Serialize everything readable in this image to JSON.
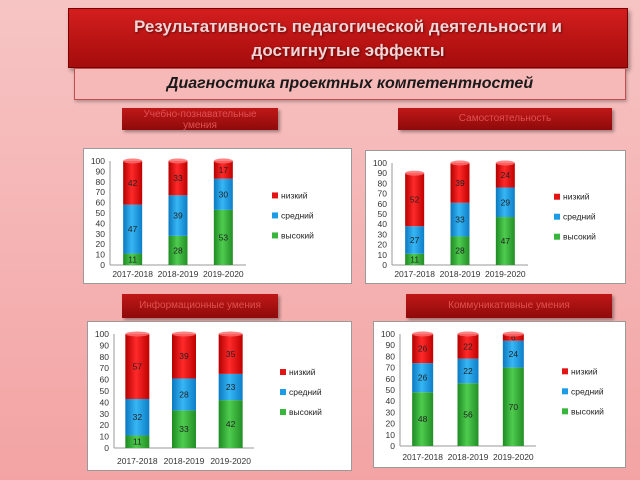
{
  "header": {
    "title_line1": "Результативность педагогической  деятельности и",
    "title_line2": "достигнутые эффекты",
    "subtitle": "Диагностика проектных компетентностей"
  },
  "sections": [
    {
      "label_line1": "Учебно-познавательные",
      "label_line2": "умения"
    },
    {
      "label_line1": "Самостоятельность",
      "label_line2": ""
    },
    {
      "label_line1": "Информационные умения",
      "label_line2": ""
    },
    {
      "label_line1": "Коммуникативные умения",
      "label_line2": ""
    }
  ],
  "colors": {
    "низкий": "#e31414",
    "средний": "#1c9ce6",
    "высокий": "#38b53c"
  },
  "chart_data": [
    {
      "type": "bar",
      "stacked": true,
      "ylim": [
        0,
        100
      ],
      "categories": [
        "2017-2018",
        "2018-2019",
        "2019-2020"
      ],
      "yticks": [
        0,
        10,
        20,
        30,
        40,
        50,
        60,
        70,
        80,
        90,
        100
      ],
      "legend_position": "right",
      "series": [
        {
          "name": "высокий",
          "values": [
            11,
            28,
            53
          ]
        },
        {
          "name": "средний",
          "values": [
            47,
            39,
            30
          ]
        },
        {
          "name": "низкий",
          "values": [
            42,
            33,
            17
          ]
        }
      ]
    },
    {
      "type": "bar",
      "stacked": true,
      "ylim": [
        0,
        100
      ],
      "categories": [
        "2017-2018",
        "2018-2019",
        "2019-2020"
      ],
      "yticks": [
        0,
        10,
        20,
        30,
        40,
        50,
        60,
        70,
        80,
        90,
        100
      ],
      "legend_position": "right",
      "series": [
        {
          "name": "высокий",
          "values": [
            11,
            28,
            47
          ]
        },
        {
          "name": "средний",
          "values": [
            27,
            33,
            29
          ]
        },
        {
          "name": "низкий",
          "values": [
            52,
            39,
            24
          ]
        }
      ]
    },
    {
      "type": "bar",
      "stacked": true,
      "ylim": [
        0,
        100
      ],
      "categories": [
        "2017-2018",
        "2018-2019",
        "2019-2020"
      ],
      "yticks": [
        0,
        10,
        20,
        30,
        40,
        50,
        60,
        70,
        80,
        90,
        100
      ],
      "legend_position": "right",
      "series": [
        {
          "name": "высокий",
          "values": [
            11,
            33,
            42
          ]
        },
        {
          "name": "средний",
          "values": [
            32,
            28,
            23
          ]
        },
        {
          "name": "низкий",
          "values": [
            57,
            39,
            35
          ]
        }
      ]
    },
    {
      "type": "bar",
      "stacked": true,
      "ylim": [
        0,
        100
      ],
      "categories": [
        "2017-2018",
        "2018-2019",
        "2019-2020"
      ],
      "yticks": [
        0,
        10,
        20,
        30,
        40,
        50,
        60,
        70,
        80,
        90,
        100
      ],
      "legend_position": "right",
      "series": [
        {
          "name": "высокий",
          "values": [
            48,
            56,
            70
          ]
        },
        {
          "name": "средний",
          "values": [
            26,
            22,
            24
          ]
        },
        {
          "name": "низкий",
          "values": [
            26,
            22,
            6
          ]
        }
      ]
    }
  ]
}
